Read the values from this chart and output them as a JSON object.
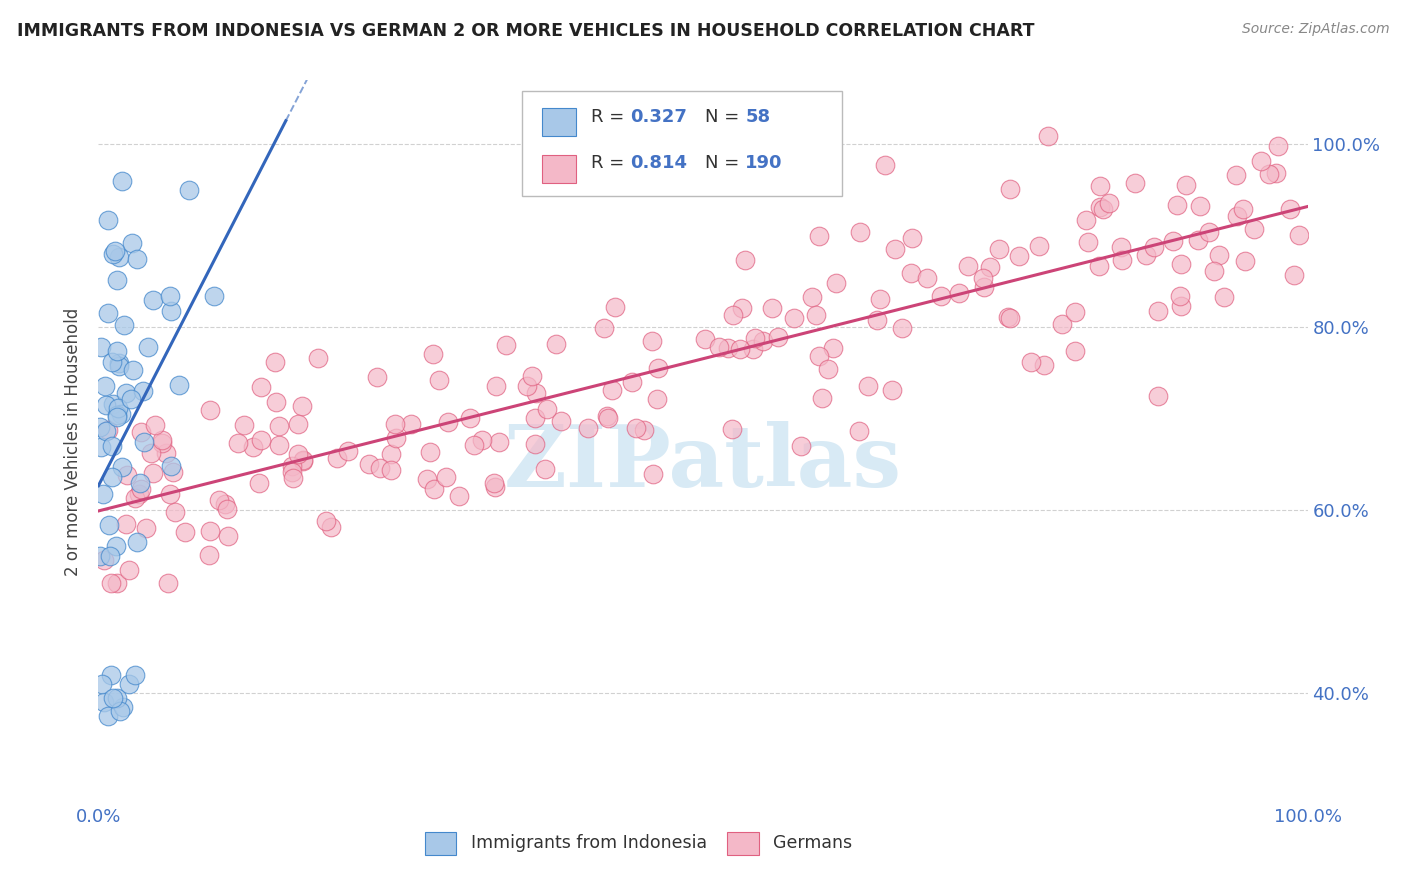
{
  "title": "IMMIGRANTS FROM INDONESIA VS GERMAN 2 OR MORE VEHICLES IN HOUSEHOLD CORRELATION CHART",
  "source": "Source: ZipAtlas.com",
  "ylabel": "2 or more Vehicles in Household",
  "y_ticks": [
    "40.0%",
    "60.0%",
    "80.0%",
    "100.0%"
  ],
  "y_tick_vals": [
    0.4,
    0.6,
    0.8,
    1.0
  ],
  "color_blue": "#a8c8e8",
  "color_pink": "#f4b8c8",
  "edge_blue": "#4488cc",
  "edge_pink": "#e06080",
  "line_blue": "#3366bb",
  "line_pink": "#cc4477",
  "watermark_color": "#d8eaf5",
  "background": "#ffffff",
  "grid_color": "#cccccc",
  "tick_color": "#4472c4",
  "legend_r1": "0.327",
  "legend_n1": "58",
  "legend_r2": "0.814",
  "legend_n2": "190"
}
